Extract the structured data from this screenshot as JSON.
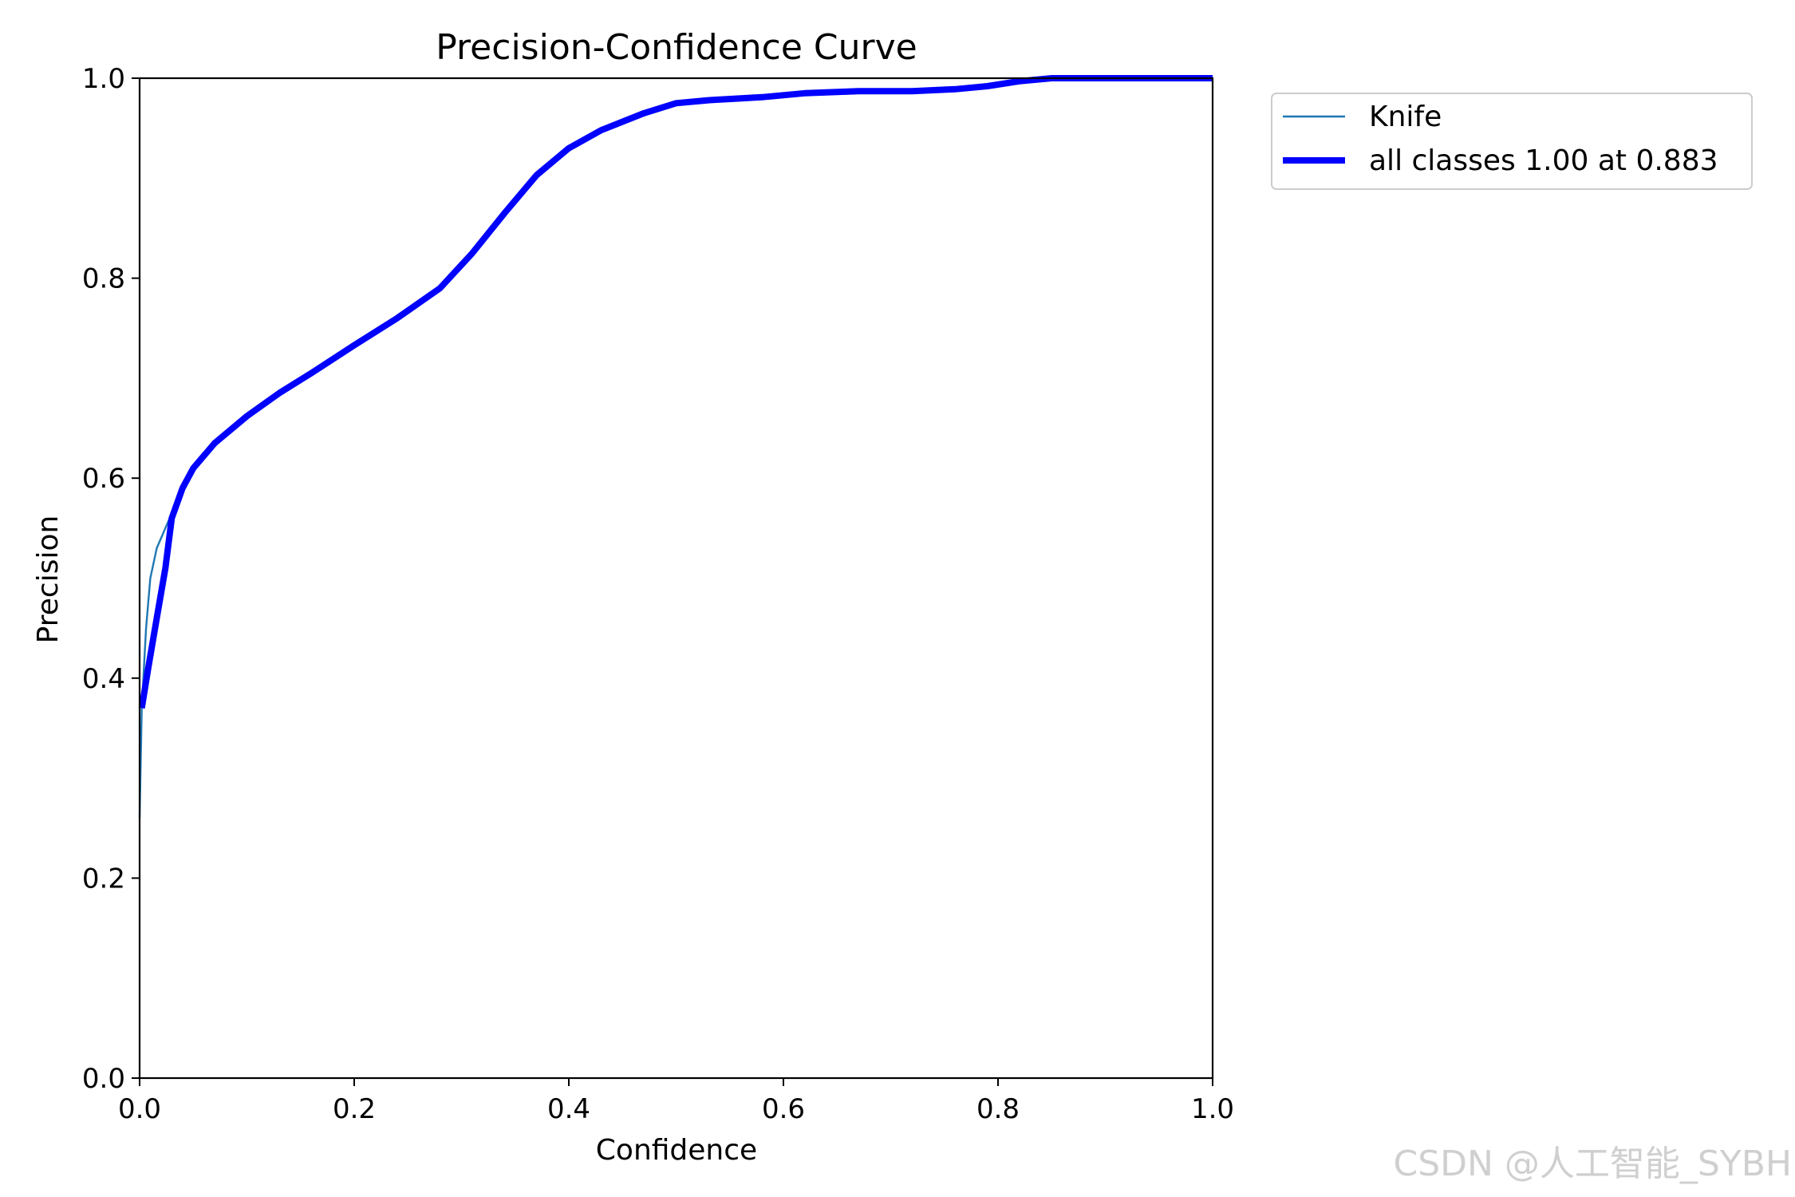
{
  "chart_data": {
    "type": "line",
    "title": "Precision-Confidence Curve",
    "xlabel": "Confidence",
    "ylabel": "Precision",
    "xlim": [
      0,
      1
    ],
    "ylim": [
      0,
      1
    ],
    "xticks": [
      "0.0",
      "0.2",
      "0.4",
      "0.6",
      "0.8",
      "1.0"
    ],
    "yticks": [
      "0.0",
      "0.2",
      "0.4",
      "0.6",
      "0.8",
      "1.0"
    ],
    "grid": false,
    "legend_position": "outside-top-right",
    "series": [
      {
        "name": "Knife",
        "color": "#1f77b4",
        "line_style": "thin",
        "x": [
          0.0,
          0.002,
          0.006,
          0.01,
          0.016,
          0.024,
          0.03,
          0.04,
          0.05,
          0.07,
          0.1,
          0.13,
          0.16,
          0.2,
          0.24,
          0.28,
          0.31,
          0.34,
          0.37,
          0.4,
          0.43,
          0.47,
          0.5,
          0.53,
          0.58,
          0.62,
          0.67,
          0.72,
          0.76,
          0.79,
          0.82,
          0.85,
          0.88,
          0.91,
          0.95,
          1.0
        ],
        "y": [
          0.26,
          0.37,
          0.45,
          0.5,
          0.53,
          0.55,
          0.565,
          0.59,
          0.61,
          0.635,
          0.662,
          0.685,
          0.705,
          0.733,
          0.76,
          0.79,
          0.825,
          0.865,
          0.903,
          0.93,
          0.948,
          0.965,
          0.975,
          0.978,
          0.981,
          0.985,
          0.987,
          0.987,
          0.989,
          0.992,
          0.997,
          1.0,
          1.0,
          1.0,
          1.0,
          1.0
        ]
      },
      {
        "name": "all classes 1.00 at 0.883",
        "color": "#0000ff",
        "line_style": "thick",
        "x": [
          0.002,
          0.008,
          0.016,
          0.024,
          0.03,
          0.04,
          0.05,
          0.07,
          0.1,
          0.13,
          0.16,
          0.2,
          0.24,
          0.28,
          0.31,
          0.34,
          0.37,
          0.4,
          0.43,
          0.47,
          0.5,
          0.53,
          0.58,
          0.62,
          0.67,
          0.72,
          0.76,
          0.79,
          0.82,
          0.85,
          0.88,
          0.91,
          0.95,
          1.0
        ],
        "y": [
          0.37,
          0.41,
          0.46,
          0.51,
          0.56,
          0.59,
          0.61,
          0.635,
          0.662,
          0.685,
          0.705,
          0.733,
          0.76,
          0.79,
          0.825,
          0.865,
          0.903,
          0.93,
          0.948,
          0.965,
          0.975,
          0.978,
          0.981,
          0.985,
          0.987,
          0.987,
          0.989,
          0.992,
          0.997,
          1.0,
          1.0,
          1.0,
          1.0,
          1.0
        ]
      }
    ]
  },
  "watermark": "CSDN @人工智能_SYBH"
}
